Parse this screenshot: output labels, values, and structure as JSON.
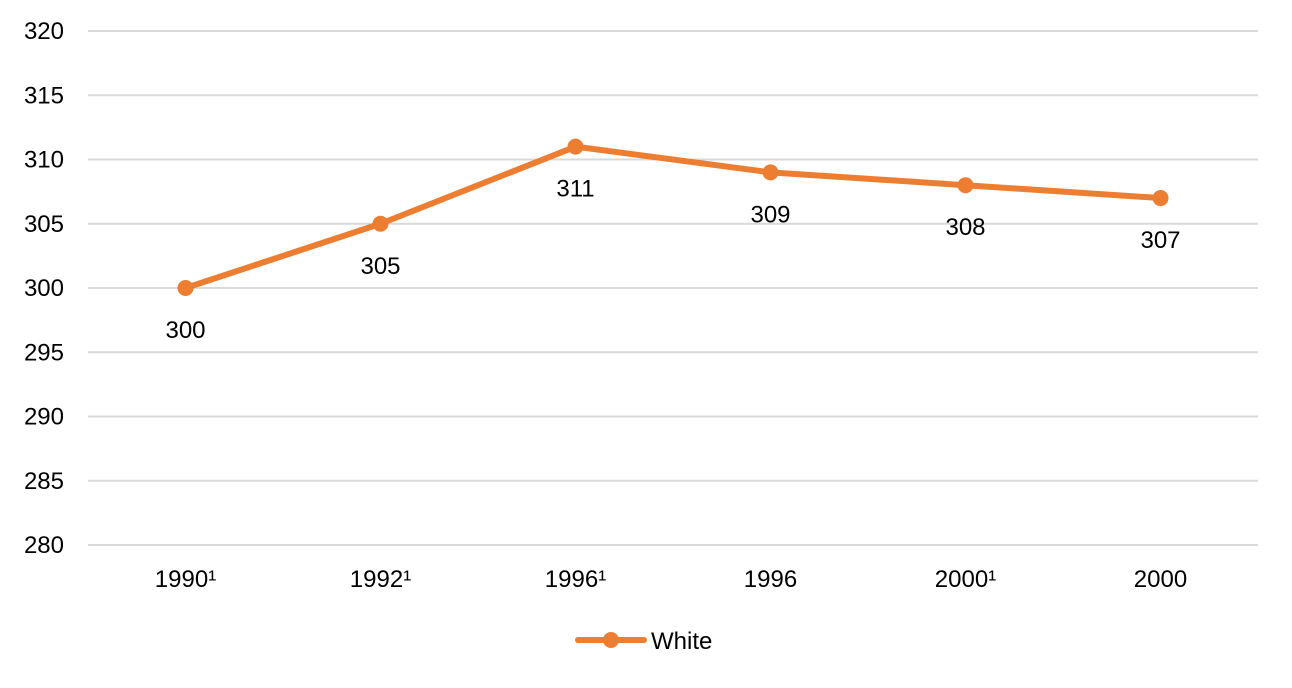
{
  "chart_data": {
    "type": "line",
    "categories": [
      "1990¹",
      "1992¹",
      "1996¹",
      "1996",
      "2000¹",
      "2000"
    ],
    "series": [
      {
        "name": "White",
        "values": [
          300,
          305,
          311,
          309,
          308,
          307
        ],
        "color": "#ed7d31"
      }
    ],
    "data_labels": [
      "300",
      "305",
      "311",
      "309",
      "308",
      "307"
    ],
    "ylim": [
      280,
      320
    ],
    "ytick_step": 5,
    "ytick_labels": [
      "280",
      "285",
      "290",
      "295",
      "300",
      "305",
      "310",
      "315",
      "320"
    ],
    "grid": true,
    "legend": "bottom-center",
    "title": "",
    "xlabel": "",
    "ylabel": ""
  }
}
